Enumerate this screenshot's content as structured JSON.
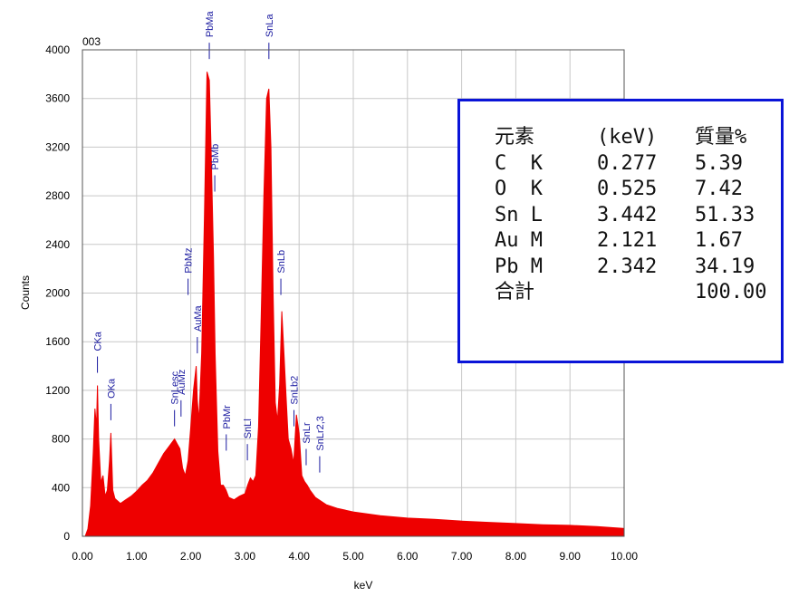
{
  "chart_data": {
    "type": "area",
    "title": "003",
    "xlabel": "keV",
    "ylabel": "Counts",
    "xlim": [
      0,
      10
    ],
    "ylim": [
      0,
      4000
    ],
    "grid": true,
    "series_color": "#ee0000",
    "x_ticks": [
      "0.00",
      "1.00",
      "2.00",
      "3.00",
      "4.00",
      "5.00",
      "6.00",
      "7.00",
      "8.00",
      "9.00",
      "10.00"
    ],
    "y_ticks": [
      "0",
      "400",
      "800",
      "1200",
      "1600",
      "2000",
      "2400",
      "2800",
      "3200",
      "3600",
      "4000"
    ],
    "spectrum": {
      "x": [
        0.05,
        0.1,
        0.15,
        0.2,
        0.23,
        0.26,
        0.277,
        0.3,
        0.34,
        0.38,
        0.42,
        0.46,
        0.5,
        0.525,
        0.56,
        0.6,
        0.7,
        0.8,
        0.9,
        1.0,
        1.1,
        1.2,
        1.3,
        1.4,
        1.5,
        1.6,
        1.7,
        1.75,
        1.8,
        1.85,
        1.9,
        1.95,
        2.0,
        2.05,
        2.1,
        2.121,
        2.15,
        2.2,
        2.25,
        2.3,
        2.342,
        2.38,
        2.42,
        2.45,
        2.5,
        2.55,
        2.6,
        2.65,
        2.7,
        2.8,
        2.9,
        3.0,
        3.05,
        3.1,
        3.15,
        3.2,
        3.25,
        3.3,
        3.35,
        3.4,
        3.442,
        3.48,
        3.52,
        3.56,
        3.6,
        3.64,
        3.68,
        3.72,
        3.76,
        3.8,
        3.85,
        3.9,
        3.95,
        4.0,
        4.05,
        4.1,
        4.15,
        4.2,
        4.3,
        4.4,
        4.5,
        4.7,
        5.0,
        5.5,
        6.0,
        6.5,
        7.0,
        7.5,
        8.0,
        8.5,
        9.0,
        9.5,
        10.0
      ],
      "y": [
        0,
        60,
        250,
        700,
        1050,
        900,
        1240,
        800,
        440,
        500,
        330,
        380,
        620,
        850,
        380,
        310,
        270,
        300,
        330,
        370,
        420,
        460,
        520,
        600,
        680,
        740,
        800,
        760,
        720,
        560,
        500,
        620,
        900,
        1200,
        1400,
        1120,
        950,
        1500,
        2600,
        3820,
        3750,
        3100,
        2300,
        1500,
        700,
        420,
        420,
        380,
        320,
        300,
        330,
        350,
        420,
        480,
        450,
        500,
        900,
        1800,
        2800,
        3600,
        3680,
        3200,
        2000,
        1100,
        950,
        1250,
        1850,
        1500,
        1150,
        800,
        720,
        600,
        1000,
        850,
        500,
        450,
        420,
        380,
        320,
        290,
        260,
        230,
        200,
        170,
        150,
        140,
        125,
        115,
        105,
        95,
        90,
        80,
        65
      ]
    },
    "peak_labels": [
      {
        "text": "CKa",
        "x": 0.277,
        "y": 1240
      },
      {
        "text": "OKa",
        "x": 0.525,
        "y": 850
      },
      {
        "text": "SnLesc",
        "x": 1.7,
        "y": 800
      },
      {
        "text": "AuMz",
        "x": 1.82,
        "y": 880
      },
      {
        "text": "PbMz",
        "x": 1.95,
        "y": 1880
      },
      {
        "text": "AuMa",
        "x": 2.121,
        "y": 1400
      },
      {
        "text": "PbMa",
        "x": 2.342,
        "y": 3820
      },
      {
        "text": "PbMb",
        "x": 2.443,
        "y": 2730
      },
      {
        "text": "PbMr",
        "x": 2.655,
        "y": 600
      },
      {
        "text": "SnLl",
        "x": 3.045,
        "y": 520
      },
      {
        "text": "SnLa",
        "x": 3.442,
        "y": 3820
      },
      {
        "text": "SnLb",
        "x": 3.663,
        "y": 1880
      },
      {
        "text": "SnLb2",
        "x": 3.905,
        "y": 800
      },
      {
        "text": "SnLr",
        "x": 4.13,
        "y": 480
      },
      {
        "text": "SnLr2,3",
        "x": 4.38,
        "y": 420
      }
    ]
  },
  "results": {
    "header": [
      "元素",
      "(keV)",
      "質量%"
    ],
    "rows": [
      [
        "C  K",
        "0.277",
        "5.39"
      ],
      [
        "O  K",
        "0.525",
        "7.42"
      ],
      [
        "Sn L",
        "3.442",
        "51.33"
      ],
      [
        "Au M",
        "2.121",
        "1.67"
      ],
      [
        "Pb M",
        "2.342",
        "34.19"
      ]
    ],
    "total": [
      "合計",
      "",
      "100.00"
    ]
  }
}
